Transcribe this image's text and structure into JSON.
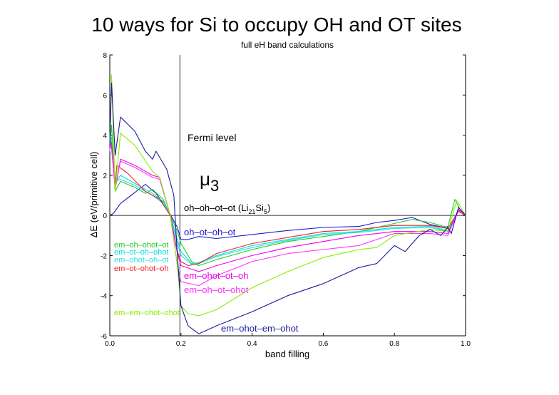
{
  "chart_data": {
    "type": "line",
    "title": "10 ways for Si to occupy OH and OT sites",
    "subtitle": "full eH band calculations",
    "xlabel": "band filling",
    "ylabel": "ΔE (eV/primitive cell)",
    "xlim": [
      0,
      1
    ],
    "ylim": [
      -6,
      8
    ],
    "xticks": [
      "0.0",
      "0.2",
      "0.4",
      "0.6",
      "0.8",
      "1.0"
    ],
    "xtick_values": [
      0,
      0.2,
      0.4,
      0.6,
      0.8,
      1.0
    ],
    "yticks": [
      "-6",
      "-4",
      "-2",
      "0",
      "2",
      "4",
      "6",
      "8"
    ],
    "ytick_values": [
      -6,
      -4,
      -2,
      0,
      2,
      4,
      6,
      8
    ],
    "fermi_level_x": 0.197,
    "annotations": {
      "fermi": "Fermi level",
      "mu": "μ",
      "mu_sub": "3",
      "reference_prefix": "oh–oh–ot–ot  (Li",
      "reference_sub1": "21",
      "reference_mid": "Si",
      "reference_sub2": "5",
      "reference_suffix": ")"
    },
    "series": [
      {
        "name": "oh–ot–oh–ot",
        "color": "#1a1acc",
        "x": [
          0,
          0.01,
          0.03,
          0.06,
          0.1,
          0.13,
          0.15,
          0.17,
          0.19,
          0.2,
          0.22,
          0.25,
          0.3,
          0.4,
          0.5,
          0.6,
          0.7,
          0.75,
          0.8,
          0.85,
          0.9,
          0.94,
          0.96,
          0.98,
          1.0
        ],
        "y": [
          0,
          0.1,
          0.6,
          1.0,
          1.55,
          1.1,
          0.6,
          0.05,
          -0.6,
          -1.2,
          -1.2,
          -1.05,
          -1.15,
          -0.95,
          -0.75,
          -0.6,
          -0.55,
          -0.35,
          -0.25,
          -0.1,
          -0.45,
          -0.6,
          -0.5,
          0.3,
          0
        ]
      },
      {
        "name": "em–oh–ohot–ot",
        "color": "#22cc22",
        "x": [
          0,
          0.005,
          0.015,
          0.03,
          0.07,
          0.1,
          0.12,
          0.15,
          0.17,
          0.19,
          0.2,
          0.23,
          0.25,
          0.3,
          0.4,
          0.5,
          0.6,
          0.7,
          0.8,
          0.85,
          0.9,
          0.95,
          0.97,
          0.99,
          1.0
        ],
        "y": [
          3.5,
          4.5,
          1.2,
          1.7,
          1.4,
          1.1,
          1.3,
          0.8,
          0,
          -0.8,
          -1.4,
          -2.3,
          -2.5,
          -2.2,
          -1.7,
          -1.3,
          -1.05,
          -0.8,
          -0.4,
          -0.2,
          -0.35,
          -0.6,
          0.8,
          0.1,
          0
        ]
      },
      {
        "name": "em–ot–oh–ohot",
        "color": "#00dddd",
        "x": [
          0,
          0.005,
          0.015,
          0.03,
          0.07,
          0.12,
          0.15,
          0.17,
          0.19,
          0.2,
          0.23,
          0.25,
          0.3,
          0.4,
          0.5,
          0.6,
          0.7,
          0.8,
          0.9,
          0.95,
          0.98,
          1.0
        ],
        "y": [
          3.3,
          3.9,
          1.6,
          2.0,
          1.6,
          1.1,
          0.7,
          0,
          -1.2,
          -1.8,
          -2.4,
          -2.35,
          -2.0,
          -1.5,
          -1.2,
          -0.9,
          -0.8,
          -0.6,
          -0.55,
          -0.75,
          0.3,
          0
        ]
      },
      {
        "name": "em–ohot–oh–ot",
        "color": "#33dddd",
        "x": [
          0,
          0.005,
          0.015,
          0.03,
          0.07,
          0.12,
          0.15,
          0.17,
          0.19,
          0.2,
          0.23,
          0.25,
          0.3,
          0.4,
          0.5,
          0.6,
          0.7,
          0.8,
          0.9,
          0.95,
          0.98,
          1.0
        ],
        "y": [
          3.2,
          3.7,
          1.7,
          1.8,
          1.5,
          1.0,
          0.6,
          0,
          -1.4,
          -2.0,
          -2.45,
          -2.4,
          -2.05,
          -1.6,
          -1.25,
          -0.95,
          -0.85,
          -0.65,
          -0.6,
          -0.8,
          0.25,
          0
        ]
      },
      {
        "name": "em–ot–ohot–oh",
        "color": "#ee2222",
        "x": [
          0,
          0.005,
          0.015,
          0.02,
          0.05,
          0.1,
          0.14,
          0.17,
          0.19,
          0.2,
          0.22,
          0.25,
          0.3,
          0.4,
          0.5,
          0.6,
          0.7,
          0.8,
          0.9,
          0.95,
          0.98,
          1.0
        ],
        "y": [
          3.7,
          3.6,
          1.6,
          2.5,
          2.1,
          1.2,
          0.8,
          0,
          -1.8,
          -2.3,
          -2.5,
          -2.4,
          -1.9,
          -1.4,
          -1.1,
          -0.8,
          -0.7,
          -0.5,
          -0.5,
          -0.65,
          0.2,
          0
        ]
      },
      {
        "name": "em–ohot–ot–oh",
        "color": "#ee00ee",
        "x": [
          0,
          0.005,
          0.015,
          0.03,
          0.07,
          0.12,
          0.14,
          0.17,
          0.19,
          0.2,
          0.25,
          0.3,
          0.4,
          0.5,
          0.6,
          0.7,
          0.8,
          0.9,
          0.95,
          0.98,
          1.0
        ],
        "y": [
          3.6,
          3.4,
          1.3,
          2.8,
          2.5,
          2.0,
          1.9,
          0,
          -1.9,
          -2.5,
          -2.8,
          -2.5,
          -2.0,
          -1.6,
          -1.3,
          -1.0,
          -0.8,
          -0.8,
          -0.9,
          0.3,
          0
        ]
      },
      {
        "name": "em–oh–ot–ohot",
        "color": "#ff33ff",
        "x": [
          0,
          0.005,
          0.015,
          0.03,
          0.07,
          0.12,
          0.14,
          0.17,
          0.19,
          0.2,
          0.25,
          0.3,
          0.4,
          0.5,
          0.6,
          0.7,
          0.8,
          0.9,
          0.95,
          0.98,
          1.0
        ],
        "y": [
          3.5,
          3.3,
          1.4,
          2.7,
          2.4,
          1.9,
          1.8,
          0,
          -2.5,
          -3.3,
          -3.5,
          -3.0,
          -2.3,
          -1.9,
          -1.7,
          -1.5,
          -0.9,
          -0.9,
          -1.0,
          0.25,
          0
        ]
      },
      {
        "name": "em–em–ohot–ohot",
        "color": "#88ee00",
        "x": [
          0,
          0.005,
          0.015,
          0.03,
          0.07,
          0.12,
          0.14,
          0.17,
          0.19,
          0.2,
          0.22,
          0.25,
          0.3,
          0.4,
          0.5,
          0.6,
          0.7,
          0.75,
          0.8,
          0.9,
          0.95,
          0.975,
          1.0
        ],
        "y": [
          3.5,
          7.0,
          1.2,
          4.1,
          3.5,
          2.2,
          1.9,
          0,
          -2.5,
          -4.5,
          -4.9,
          -5.0,
          -4.7,
          -3.6,
          -2.8,
          -2.1,
          -1.7,
          -1.6,
          -1.0,
          -0.7,
          -0.8,
          0.75,
          0
        ]
      },
      {
        "name": "em–ohot–em–ohot",
        "color": "#1a1a99",
        "x": [
          0,
          0.005,
          0.015,
          0.03,
          0.07,
          0.1,
          0.12,
          0.13,
          0.16,
          0.18,
          0.19,
          0.2,
          0.22,
          0.25,
          0.3,
          0.4,
          0.5,
          0.6,
          0.7,
          0.75,
          0.8,
          0.83,
          0.87,
          0.9,
          0.93,
          0.95,
          0.96,
          0.98,
          1.0
        ],
        "y": [
          3.5,
          6.6,
          3.0,
          4.9,
          4.2,
          3.2,
          2.8,
          3.2,
          2.3,
          1.0,
          -2.0,
          -4.5,
          -5.5,
          -5.9,
          -5.5,
          -4.8,
          -4.0,
          -3.4,
          -2.6,
          -2.4,
          -1.5,
          -1.8,
          -1.0,
          -0.7,
          -1.0,
          -0.6,
          -0.9,
          0.4,
          0
        ]
      }
    ]
  }
}
